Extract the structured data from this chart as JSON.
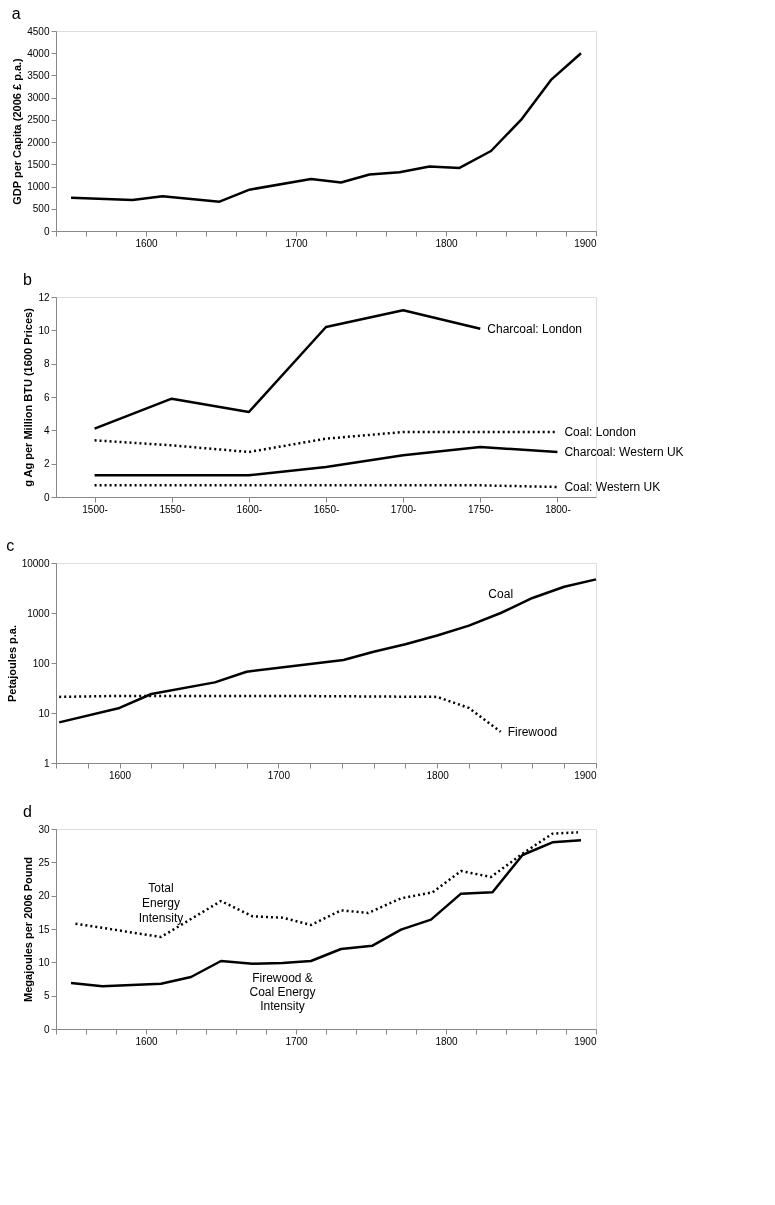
{
  "chart_data": [
    {
      "type": "line",
      "title": "a",
      "ylabel": "GDP per Capita (2006 £ p.a.)",
      "xlim": [
        1540,
        1900
      ],
      "xticks": [
        {
          "value": 1540,
          "label": null
        },
        {
          "value": 1560,
          "label": null
        },
        {
          "value": 1580,
          "label": null
        },
        1600,
        {
          "value": 1620,
          "label": null
        },
        {
          "value": 1640,
          "label": null
        },
        {
          "value": 1660,
          "label": null
        },
        {
          "value": 1680,
          "label": null
        },
        1700,
        {
          "value": 1720,
          "label": null
        },
        {
          "value": 1740,
          "label": null
        },
        {
          "value": 1760,
          "label": null
        },
        {
          "value": 1780,
          "label": null
        },
        1800,
        {
          "value": 1820,
          "label": null
        },
        {
          "value": 1840,
          "label": null
        },
        {
          "value": 1860,
          "label": null
        },
        {
          "value": 1880,
          "label": null
        },
        1900
      ],
      "ylim": [
        0,
        4500
      ],
      "yticks": [
        0,
        500,
        1000,
        1500,
        2000,
        2500,
        3000,
        3500,
        4000,
        4500
      ],
      "x": [
        1550,
        1591,
        1611,
        1649,
        1669,
        1710,
        1730,
        1749,
        1769,
        1789,
        1809,
        1830,
        1850,
        1870,
        1890
      ],
      "series": [
        {
          "color": "#000000",
          "line_style": "solid",
          "values": [
            750,
            700,
            780,
            660,
            930,
            1170,
            1090,
            1270,
            1320,
            1450,
            1420,
            1800,
            2500,
            3400,
            4000
          ]
        }
      ]
    },
    {
      "type": "line",
      "title": "b",
      "ylabel": "g Ag per Million BTU (1600 Prices)",
      "categories": [
        "1500-",
        "1550-",
        "1600-",
        "1650-",
        "1700-",
        "1750-",
        "1800-"
      ],
      "ylim": [
        0,
        12
      ],
      "yticks": [
        0,
        2,
        4,
        6,
        8,
        10,
        12
      ],
      "series": [
        {
          "color": "#000000",
          "line_style": "solid",
          "values": [
            4.1,
            5.9,
            5.1,
            10.2,
            11.2,
            10.1,
            null
          ]
        },
        {
          "color": "#000000",
          "line_style": "dotted",
          "values": [
            3.4,
            3.1,
            2.7,
            3.5,
            3.9,
            3.9,
            3.9
          ]
        },
        {
          "color": "#000000",
          "line_style": "solid",
          "values": [
            1.3,
            1.3,
            1.3,
            1.8,
            2.5,
            3.0,
            2.7
          ]
        },
        {
          "color": "#000000",
          "line_style": "dotted",
          "values": [
            0.7,
            0.7,
            0.7,
            0.7,
            0.7,
            0.7,
            0.6
          ]
        }
      ],
      "annotations": [
        {
          "text": "Charcoal: London",
          "x": "1750-",
          "y": 10.1
        },
        {
          "text": "Coal: London",
          "x": "1800-",
          "y": 3.9
        },
        {
          "text": "Charcoal: Western UK",
          "x": "1800-",
          "y": 2.7
        },
        {
          "text": "Coal: Western UK",
          "x": "1800-",
          "y": 0.6
        }
      ]
    },
    {
      "type": "line",
      "title": "c",
      "ylabel": "Petajoules p.a.",
      "log": "y",
      "xlim": [
        1560,
        1900
      ],
      "xticks": [
        {
          "value": 1560,
          "label": null
        },
        {
          "value": 1580,
          "label": null
        },
        1600,
        {
          "value": 1620,
          "label": null
        },
        {
          "value": 1640,
          "label": null
        },
        {
          "value": 1660,
          "label": null
        },
        {
          "value": 1680,
          "label": null
        },
        1700,
        {
          "value": 1720,
          "label": null
        },
        {
          "value": 1740,
          "label": null
        },
        {
          "value": 1760,
          "label": null
        },
        {
          "value": 1780,
          "label": null
        },
        1800,
        {
          "value": 1820,
          "label": null
        },
        {
          "value": 1840,
          "label": null
        },
        {
          "value": 1860,
          "label": null
        },
        {
          "value": 1880,
          "label": null
        },
        1900
      ],
      "ylim": [
        1,
        10000
      ],
      "yticks": [
        1,
        10,
        100,
        1000,
        10000
      ],
      "series": [
        {
          "color": "#000000",
          "line_style": "solid",
          "x": [
            1562,
            1600,
            1620,
            1660,
            1680,
            1741,
            1760,
            1780,
            1800,
            1820,
            1840,
            1860,
            1880,
            1900
          ],
          "values": [
            6.5,
            12.6,
            24,
            41,
            67,
            115,
            168,
            237,
            355,
            560,
            1000,
            2000,
            3350,
            4700
          ]
        },
        {
          "color": "#000000",
          "line_style": "dotted",
          "x": [
            1562,
            1600,
            1700,
            1800,
            1820,
            1840
          ],
          "values": [
            21,
            22,
            22,
            21,
            12.6,
            4.2
          ]
        }
      ],
      "annotations": [
        {
          "text": "Coal",
          "x": 1840,
          "y": 1000
        },
        {
          "text": "Firewood",
          "x": 1840,
          "y": 4.2
        }
      ]
    },
    {
      "type": "line",
      "title": "d",
      "ylabel": "Megajoules per 2006 Pound",
      "xlim": [
        1540,
        1900
      ],
      "xticks": [
        {
          "value": 1540,
          "label": null
        },
        {
          "value": 1560,
          "label": null
        },
        {
          "value": 1580,
          "label": null
        },
        1600,
        {
          "value": 1620,
          "label": null
        },
        {
          "value": 1640,
          "label": null
        },
        {
          "value": 1660,
          "label": null
        },
        {
          "value": 1680,
          "label": null
        },
        1700,
        {
          "value": 1720,
          "label": null
        },
        {
          "value": 1740,
          "label": null
        },
        {
          "value": 1760,
          "label": null
        },
        {
          "value": 1780,
          "label": null
        },
        1800,
        {
          "value": 1820,
          "label": null
        },
        {
          "value": 1840,
          "label": null
        },
        {
          "value": 1860,
          "label": null
        },
        {
          "value": 1880,
          "label": null
        },
        1900
      ],
      "ylim": [
        0,
        30
      ],
      "yticks": [
        0,
        5,
        10,
        15,
        20,
        25,
        30
      ],
      "series": [
        {
          "color": "#000000",
          "line_style": "solid",
          "x": [
            1550,
            1571,
            1610,
            1630,
            1650,
            1671,
            1691,
            1710,
            1730,
            1751,
            1770,
            1790,
            1810,
            1831,
            1851,
            1871,
            1890
          ],
          "values": [
            6.9,
            6.4,
            6.8,
            7.8,
            10.2,
            9.8,
            9.9,
            10.2,
            12,
            12.5,
            14.9,
            16.4,
            20.3,
            20.5,
            26.1,
            28,
            28.3
          ]
        },
        {
          "color": "#000000",
          "line_style": "dotted",
          "x": [
            1553,
            1610,
            1650,
            1671,
            1691,
            1710,
            1730,
            1748,
            1770,
            1791,
            1810,
            1830,
            1851,
            1871,
            1888
          ],
          "values": [
            15.8,
            13.8,
            19.2,
            16.9,
            16.7,
            15.6,
            17.8,
            17.4,
            19.6,
            20.5,
            23.7,
            22.8,
            26.3,
            29.3,
            29.5
          ]
        }
      ],
      "annotations": [
        {
          "text": "Total\nEnergy\nIntensity",
          "x": 1610,
          "y": 13.8
        },
        {
          "text": "Firewood &\nCoal Energy\nIntensity",
          "x": 1691,
          "y": 9.9
        }
      ]
    }
  ]
}
